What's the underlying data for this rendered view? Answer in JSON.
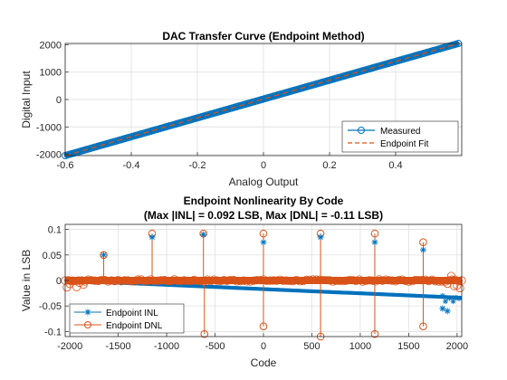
{
  "chart_data": [
    {
      "type": "line",
      "title": "DAC Transfer Curve (Endpoint Method)",
      "xlabel": "Analog Output",
      "ylabel": "Digital Input",
      "xlim": [
        -0.6,
        0.6
      ],
      "ylim": [
        -2048,
        2048
      ],
      "xticks": [
        -0.6,
        -0.4,
        -0.2,
        0,
        0.2,
        0.4
      ],
      "xtick_labels": [
        "-0.6",
        "-0.4",
        "-0.2",
        "0",
        "0.2",
        "0.4"
      ],
      "yticks": [
        -2000,
        -1000,
        0,
        1000,
        2000
      ],
      "ytick_labels": [
        "-2000",
        "-1000",
        "0",
        "1000",
        "2000"
      ],
      "grid": true,
      "legend": "bottom-right",
      "series": [
        {
          "name": "Measured",
          "style": "line-circle",
          "color": "#0072BD",
          "x_range": [
            -0.6,
            0.59
          ],
          "y_range": [
            -2048,
            2047
          ]
        },
        {
          "name": "Endpoint Fit",
          "style": "dashed",
          "color": "#D95319",
          "x_range": [
            -0.6,
            0.59
          ],
          "y_range": [
            -2048,
            2047
          ]
        }
      ]
    },
    {
      "type": "scatter",
      "title": "Endpoint Nonlinearity By Code",
      "subtitle": "(Max |INL| = 0.092 LSB, Max |DNL| = -0.11 LSB)",
      "xlabel": "Code",
      "ylabel": "Value in LSB",
      "xlim": [
        -2048,
        2048
      ],
      "ylim": [
        -0.11,
        0.11
      ],
      "xticks": [
        -2000,
        -1500,
        -1000,
        -500,
        0,
        500,
        1000,
        1500,
        2000
      ],
      "xtick_labels": [
        "-2000",
        "-1500",
        "-1000",
        "-500",
        "0",
        "500",
        "1000",
        "1500",
        "2000"
      ],
      "yticks": [
        -0.1,
        -0.05,
        0,
        0.05,
        0.1
      ],
      "ytick_labels": [
        "-0.1",
        "-0.05",
        "0",
        "0.05",
        "0.1"
      ],
      "grid": true,
      "legend": "bottom-left",
      "series": [
        {
          "name": "Endpoint INL",
          "style": "star",
          "color": "#0072BD",
          "trend": {
            "x": [
              -2048,
              2047
            ],
            "y": [
              0.0,
              -0.034
            ]
          },
          "outliers": [
            {
              "x": -1650,
              "y": 0.05
            },
            {
              "x": -1150,
              "y": 0.085
            },
            {
              "x": -620,
              "y": 0.09
            },
            {
              "x": 0,
              "y": 0.075
            },
            {
              "x": 590,
              "y": 0.085
            },
            {
              "x": 1150,
              "y": 0.075
            },
            {
              "x": 1650,
              "y": 0.06
            },
            {
              "x": 1850,
              "y": -0.055
            },
            {
              "x": 1900,
              "y": -0.06
            }
          ]
        },
        {
          "name": "Endpoint DNL",
          "style": "stem-circle",
          "color": "#D95319",
          "baseline": 0.0,
          "spikes": [
            {
              "x": -1650,
              "y": 0.05
            },
            {
              "x": -1150,
              "y": 0.092
            },
            {
              "x": -620,
              "y": 0.092
            },
            {
              "x": -610,
              "y": -0.105
            },
            {
              "x": 0,
              "y": 0.092
            },
            {
              "x": 0,
              "y": -0.09
            },
            {
              "x": 590,
              "y": 0.092
            },
            {
              "x": 590,
              "y": -0.11
            },
            {
              "x": 1150,
              "y": 0.092
            },
            {
              "x": 1150,
              "y": -0.105
            },
            {
              "x": 1650,
              "y": 0.075
            },
            {
              "x": 1650,
              "y": -0.09
            }
          ]
        }
      ]
    }
  ]
}
